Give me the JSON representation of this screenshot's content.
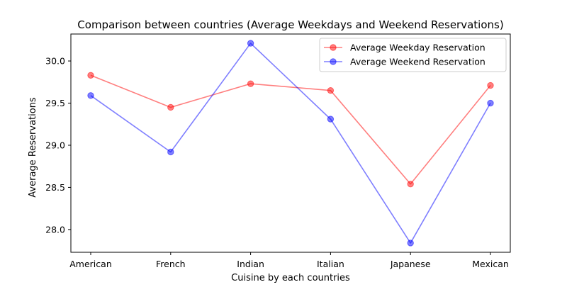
{
  "chart_data": {
    "type": "line",
    "title": "Comparison between countries (Average Weekdays and Weekend Reservations)",
    "xlabel": "Cuisine by each countries",
    "ylabel": "Average Reservations",
    "categories": [
      "American",
      "French",
      "Indian",
      "Italian",
      "Japanese",
      "Mexican"
    ],
    "series": [
      {
        "name": "Average Weekday Reservation",
        "color": "#ff0000",
        "values": [
          29.83,
          29.45,
          29.73,
          29.65,
          28.54,
          29.71
        ]
      },
      {
        "name": "Average Weekend Reservation",
        "color": "#0000ff",
        "values": [
          29.59,
          28.92,
          30.21,
          29.31,
          27.84,
          29.5
        ]
      }
    ],
    "ylim": [
      27.73,
      30.32
    ],
    "yticks": [
      "28.0",
      "28.5",
      "29.0",
      "29.5",
      "30.0"
    ],
    "grid": false,
    "legend_position": "top-right"
  }
}
